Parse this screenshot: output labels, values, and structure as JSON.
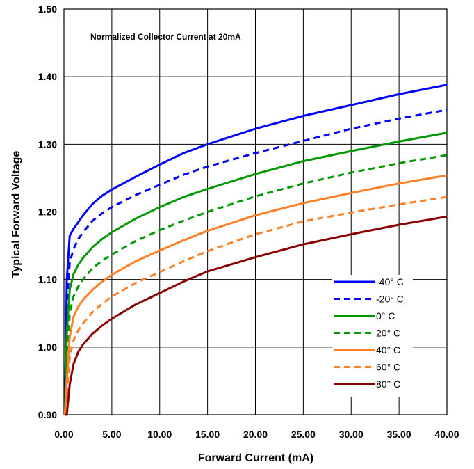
{
  "chart_data": {
    "type": "line",
    "annotation": "Normalized Collector Current at 20mA",
    "xlabel": "Forward Current (mA)",
    "ylabel": "Typical Forward Voltage",
    "xlim": [
      0,
      40
    ],
    "ylim": [
      0.9,
      1.5
    ],
    "x_ticks": [
      "0.00",
      "5.00",
      "10.00",
      "15.00",
      "20.00",
      "25.00",
      "30.00",
      "35.00",
      "40.00"
    ],
    "y_ticks": [
      "0.90",
      "1.00",
      "1.10",
      "1.20",
      "1.30",
      "1.40",
      "1.50"
    ],
    "grid": true,
    "legend_position": "bottom-right",
    "series": [
      {
        "name": "-40° C",
        "color": "#0000ff",
        "dash": "solid",
        "x": [
          0.1,
          0.3,
          0.6,
          1.0,
          1.5,
          2.0,
          3.0,
          4.0,
          5.0,
          7.5,
          10.0,
          12.5,
          15.0,
          20.0,
          25.0,
          30.0,
          35.0,
          40.0
        ],
        "y": [
          0.9,
          1.1,
          1.165,
          1.175,
          1.185,
          1.195,
          1.212,
          1.224,
          1.233,
          1.252,
          1.27,
          1.287,
          1.3,
          1.323,
          1.342,
          1.358,
          1.374,
          1.388
        ]
      },
      {
        "name": "-20° C",
        "color": "#0000ff",
        "dash": "dashed",
        "x": [
          0.1,
          0.3,
          0.6,
          1.0,
          1.5,
          2.0,
          3.0,
          4.0,
          5.0,
          7.5,
          10.0,
          12.5,
          15.0,
          20.0,
          25.0,
          30.0,
          35.0,
          40.0
        ],
        "y": [
          0.9,
          1.06,
          1.125,
          1.145,
          1.16,
          1.17,
          1.187,
          1.198,
          1.207,
          1.225,
          1.24,
          1.255,
          1.267,
          1.287,
          1.305,
          1.323,
          1.338,
          1.351
        ]
      },
      {
        "name": "0° C",
        "color": "#009900",
        "dash": "solid",
        "x": [
          0.1,
          0.3,
          0.6,
          1.0,
          1.5,
          2.0,
          3.0,
          4.0,
          5.0,
          7.5,
          10.0,
          12.5,
          15.0,
          20.0,
          25.0,
          30.0,
          35.0,
          40.0
        ],
        "y": [
          0.9,
          1.02,
          1.085,
          1.108,
          1.122,
          1.132,
          1.148,
          1.16,
          1.17,
          1.19,
          1.207,
          1.222,
          1.234,
          1.256,
          1.275,
          1.29,
          1.304,
          1.317
        ]
      },
      {
        "name": "20° C",
        "color": "#009900",
        "dash": "dashed",
        "x": [
          0.1,
          0.3,
          0.6,
          1.0,
          1.5,
          2.0,
          3.0,
          4.0,
          5.0,
          7.5,
          10.0,
          12.5,
          15.0,
          20.0,
          25.0,
          30.0,
          35.0,
          40.0
        ],
        "y": [
          0.9,
          0.98,
          1.05,
          1.075,
          1.09,
          1.1,
          1.117,
          1.128,
          1.137,
          1.157,
          1.173,
          1.187,
          1.2,
          1.223,
          1.242,
          1.258,
          1.272,
          1.284
        ]
      },
      {
        "name": "40° C",
        "color": "#ff7f27",
        "dash": "solid",
        "x": [
          0.1,
          0.3,
          0.6,
          1.0,
          1.5,
          2.0,
          3.0,
          4.0,
          5.0,
          7.5,
          10.0,
          12.5,
          15.0,
          20.0,
          25.0,
          30.0,
          35.0,
          40.0
        ],
        "y": [
          0.9,
          0.95,
          1.015,
          1.045,
          1.06,
          1.07,
          1.085,
          1.097,
          1.107,
          1.127,
          1.143,
          1.158,
          1.172,
          1.195,
          1.213,
          1.228,
          1.242,
          1.254
        ]
      },
      {
        "name": "60° C",
        "color": "#ff7f27",
        "dash": "dashed",
        "x": [
          0.1,
          0.3,
          0.6,
          1.0,
          1.5,
          2.0,
          3.0,
          4.0,
          5.0,
          7.5,
          10.0,
          12.5,
          15.0,
          20.0,
          25.0,
          30.0,
          35.0,
          40.0
        ],
        "y": [
          0.88,
          0.93,
          0.985,
          1.01,
          1.025,
          1.035,
          1.052,
          1.064,
          1.075,
          1.095,
          1.111,
          1.127,
          1.142,
          1.167,
          1.186,
          1.199,
          1.211,
          1.222
        ]
      },
      {
        "name": "80° C",
        "color": "#8b0000",
        "dash": "solid",
        "x": [
          0.1,
          0.3,
          0.6,
          1.0,
          1.5,
          2.0,
          3.0,
          4.0,
          5.0,
          7.5,
          10.0,
          12.5,
          15.0,
          20.0,
          25.0,
          30.0,
          35.0,
          40.0
        ],
        "y": [
          0.87,
          0.9,
          0.945,
          0.975,
          0.993,
          1.004,
          1.02,
          1.032,
          1.042,
          1.063,
          1.08,
          1.097,
          1.112,
          1.133,
          1.152,
          1.167,
          1.181,
          1.193
        ]
      }
    ]
  }
}
